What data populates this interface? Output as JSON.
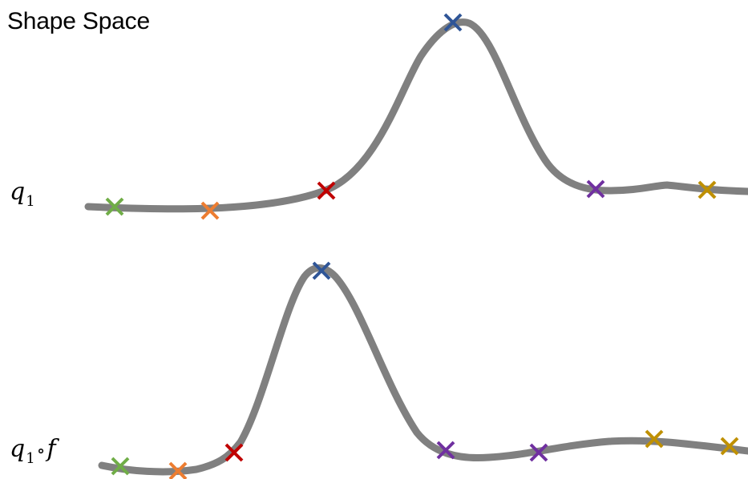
{
  "title": "Shape Space",
  "curves": [
    {
      "label": {
        "symbol": "q",
        "subscript": "1",
        "operator": "",
        "suffix": ""
      },
      "markers": [
        {
          "name": "green-marker",
          "color": "#70ad47"
        },
        {
          "name": "orange-marker",
          "color": "#ed7d31"
        },
        {
          "name": "red-marker",
          "color": "#c00000"
        },
        {
          "name": "blue-marker",
          "color": "#2f5597"
        },
        {
          "name": "purple-marker",
          "color": "#7030a0"
        },
        {
          "name": "gold-marker",
          "color": "#bf9000"
        }
      ]
    },
    {
      "label": {
        "symbol": "q",
        "subscript": "1",
        "operator": "∘",
        "suffix": "f"
      },
      "markers": [
        {
          "name": "green-marker",
          "color": "#70ad47"
        },
        {
          "name": "orange-marker",
          "color": "#ed7d31"
        },
        {
          "name": "red-marker",
          "color": "#c00000"
        },
        {
          "name": "blue-marker",
          "color": "#2f5597"
        },
        {
          "name": "purple-marker",
          "color": "#7030a0"
        },
        {
          "name": "purple-marker",
          "color": "#7030a0"
        },
        {
          "name": "gold-marker",
          "color": "#bf9000"
        },
        {
          "name": "gold-marker",
          "color": "#bf9000"
        }
      ]
    }
  ],
  "curve_color": "#808080"
}
